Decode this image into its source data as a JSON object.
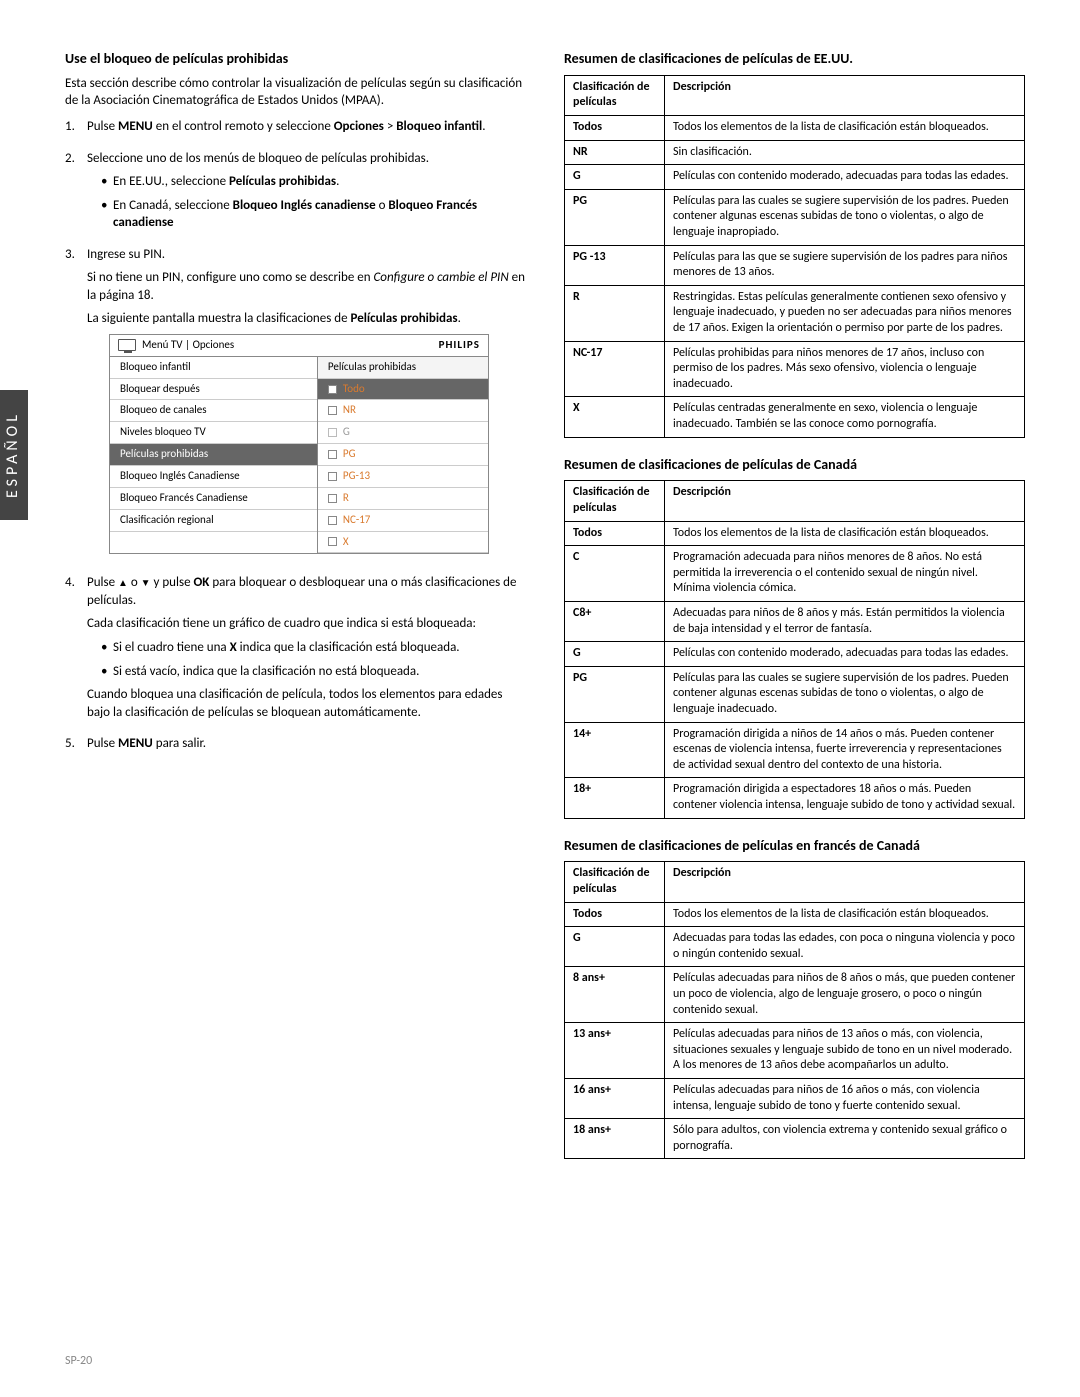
{
  "lang_tab": "ESPAÑOL",
  "page_number": "SP-20",
  "left": {
    "heading": "Use el bloqueo de películas prohibidas",
    "intro": "Esta sección describe cómo controlar la visualización de películas según su clasificación de la Asociación Cinematográfica de Estados Unidos (MPAA).",
    "step1_a": "Pulse ",
    "step1_b": "MENU",
    "step1_c": " en el control remoto y seleccione ",
    "step1_d": "Opciones",
    "step1_e": " > ",
    "step1_f": "Bloqueo infantil",
    "step1_g": ".",
    "step2": "Seleccione uno de los menús de bloqueo de películas prohibidas.",
    "step2_b1_a": "En EE.UU., seleccione ",
    "step2_b1_b": "Películas prohibidas",
    "step2_b1_c": ".",
    "step2_b2_a": "En Canadá, seleccione ",
    "step2_b2_b": "Bloqueo Inglés canadiense",
    "step2_b2_c": " o ",
    "step2_b2_d": "Bloqueo Francés canadiense",
    "step3": "Ingrese su PIN.",
    "step3_p2_a": "Si no tiene un PIN, configure uno como se describe en ",
    "step3_p2_b": "Configure o cambie el PIN",
    "step3_p2_c": " en la página 18.",
    "step3_p3_a": "La siguiente pantalla muestra la clasificaciones de ",
    "step3_p3_b": "Películas prohibidas",
    "step3_p3_c": ".",
    "tv": {
      "breadcrumb": "Menú TV | Opciones",
      "brand": "PHILIPS",
      "left_items": [
        "Bloqueo infantil",
        "Bloquear después",
        "Bloqueo de canales",
        "Niveles bloqueo TV",
        "Películas prohibidas",
        "Bloqueo Inglés Canadiense",
        "Bloqueo Francés Canadiense",
        "Clasificación regional"
      ],
      "left_selected_index": 4,
      "right_title": "Películas prohibidas",
      "right_items": [
        "Todo",
        "NR",
        "G",
        "PG",
        "PG-13",
        "R",
        "NC-17",
        "X"
      ],
      "right_selected_index": 0,
      "right_dim_index": 2
    },
    "step4_a": "Pulse ",
    "step4_b": " o ",
    "step4_c": " y pulse ",
    "step4_d": "OK",
    "step4_e": " para bloquear o desbloquear una o más clasificaciones de películas.",
    "step4_p2": "Cada clasificación tiene un gráfico de cuadro que indica si está bloqueada:",
    "step4_b1_a": "Si el cuadro tiene una ",
    "step4_b1_b": "X",
    "step4_b1_c": " indica que la clasificación está bloqueada.",
    "step4_b2": "Si está vacío, indica que la clasificación no está bloqueada.",
    "step4_p3": "Cuando bloquea una clasificación de película, todos los elementos para edades bajo la clasificación de películas se bloquean automáticamente.",
    "step5_a": "Pulse ",
    "step5_b": "MENU",
    "step5_c": " para salir."
  },
  "right": {
    "us_heading": "Resumen de clasificaciones de películas de EE.UU.",
    "th_class": "Clasificación de películas",
    "th_desc": "Descripción",
    "us_rows": [
      [
        "Todos",
        "Todos los elementos de la lista de clasificación están bloqueados."
      ],
      [
        "NR",
        "Sin clasificación."
      ],
      [
        "G",
        "Películas con contenido moderado, adecuadas para todas las edades."
      ],
      [
        "PG",
        "Películas para las cuales se sugiere supervisión de los padres. Pueden contener algunas escenas subidas de tono o violentas, o algo de lenguaje inapropiado."
      ],
      [
        "PG -13",
        "Películas para las que se sugiere supervisión de los padres para niños menores de 13 años."
      ],
      [
        "R",
        "Restringidas. Estas películas generalmente contienen sexo ofensivo y lenguaje inadecuado, y pueden no ser adecuadas para niños menores de 17 años. Exigen la orientación o permiso por parte de los padres."
      ],
      [
        "NC-17",
        "Películas prohibidas para niños menores de 17 años, incluso con permiso de los padres. Más sexo ofensivo, violencia o lenguaje inadecuado."
      ],
      [
        "X",
        "Películas centradas generalmente en sexo, violencia o lenguaje inadecuado. También se las conoce como pornografía."
      ]
    ],
    "ca_heading": "Resumen de clasificaciones de películas de Canadá",
    "ca_rows": [
      [
        "Todos",
        "Todos los elementos de la lista de clasificación están bloqueados."
      ],
      [
        "C",
        "Programación adecuada para niños menores de 8 años. No está permitida la irreverencia o el contenido sexual de ningún nivel. Mínima violencia cómica."
      ],
      [
        "C8+",
        "Adecuadas para niños de 8 años y más. Están permitidos la violencia de baja intensidad y el terror de fantasía."
      ],
      [
        "G",
        "Películas con contenido moderado, adecuadas para todas las edades."
      ],
      [
        "PG",
        "Películas para las cuales se sugiere supervisión de los padres. Pueden contener algunas escenas subidas de tono o violentas, o algo de lenguaje inadecuado."
      ],
      [
        "14+",
        "Programación dirigida a niños de 14 años o más. Pueden contener escenas de violencia intensa, fuerte irreverencia y representaciones de actividad sexual dentro del contexto de una historia."
      ],
      [
        "18+",
        "Programación dirigida a espectadores 18 años o más. Pueden contener violencia intensa, lenguaje subido de tono y actividad sexual."
      ]
    ],
    "fr_heading": "Resumen de clasificaciones de películas en francés de Canadá",
    "fr_rows": [
      [
        "Todos",
        "Todos los elementos de la lista de clasificación están bloqueados."
      ],
      [
        "G",
        "Adecuadas para todas las edades, con poca o ninguna violencia y poco o ningún contenido sexual."
      ],
      [
        "8 ans+",
        "Películas adecuadas para niños de 8 años o más, que pueden contener un poco de violencia, algo de lenguaje grosero, o poco o ningún contenido sexual."
      ],
      [
        "13 ans+",
        "Películas adecuadas para niños de 13 años o más, con violencia, situaciones sexuales y lenguaje subido de tono en un nivel moderado. A los menores de 13 años debe acompañarlos un adulto."
      ],
      [
        "16 ans+",
        "Películas adecuadas para niños de 16 años o más, con violencia intensa, lenguaje subido de tono y fuerte contenido sexual."
      ],
      [
        "18 ans+",
        "Sólo para adultos, con violencia extrema y contenido sexual gráfico o pornografía."
      ]
    ]
  }
}
